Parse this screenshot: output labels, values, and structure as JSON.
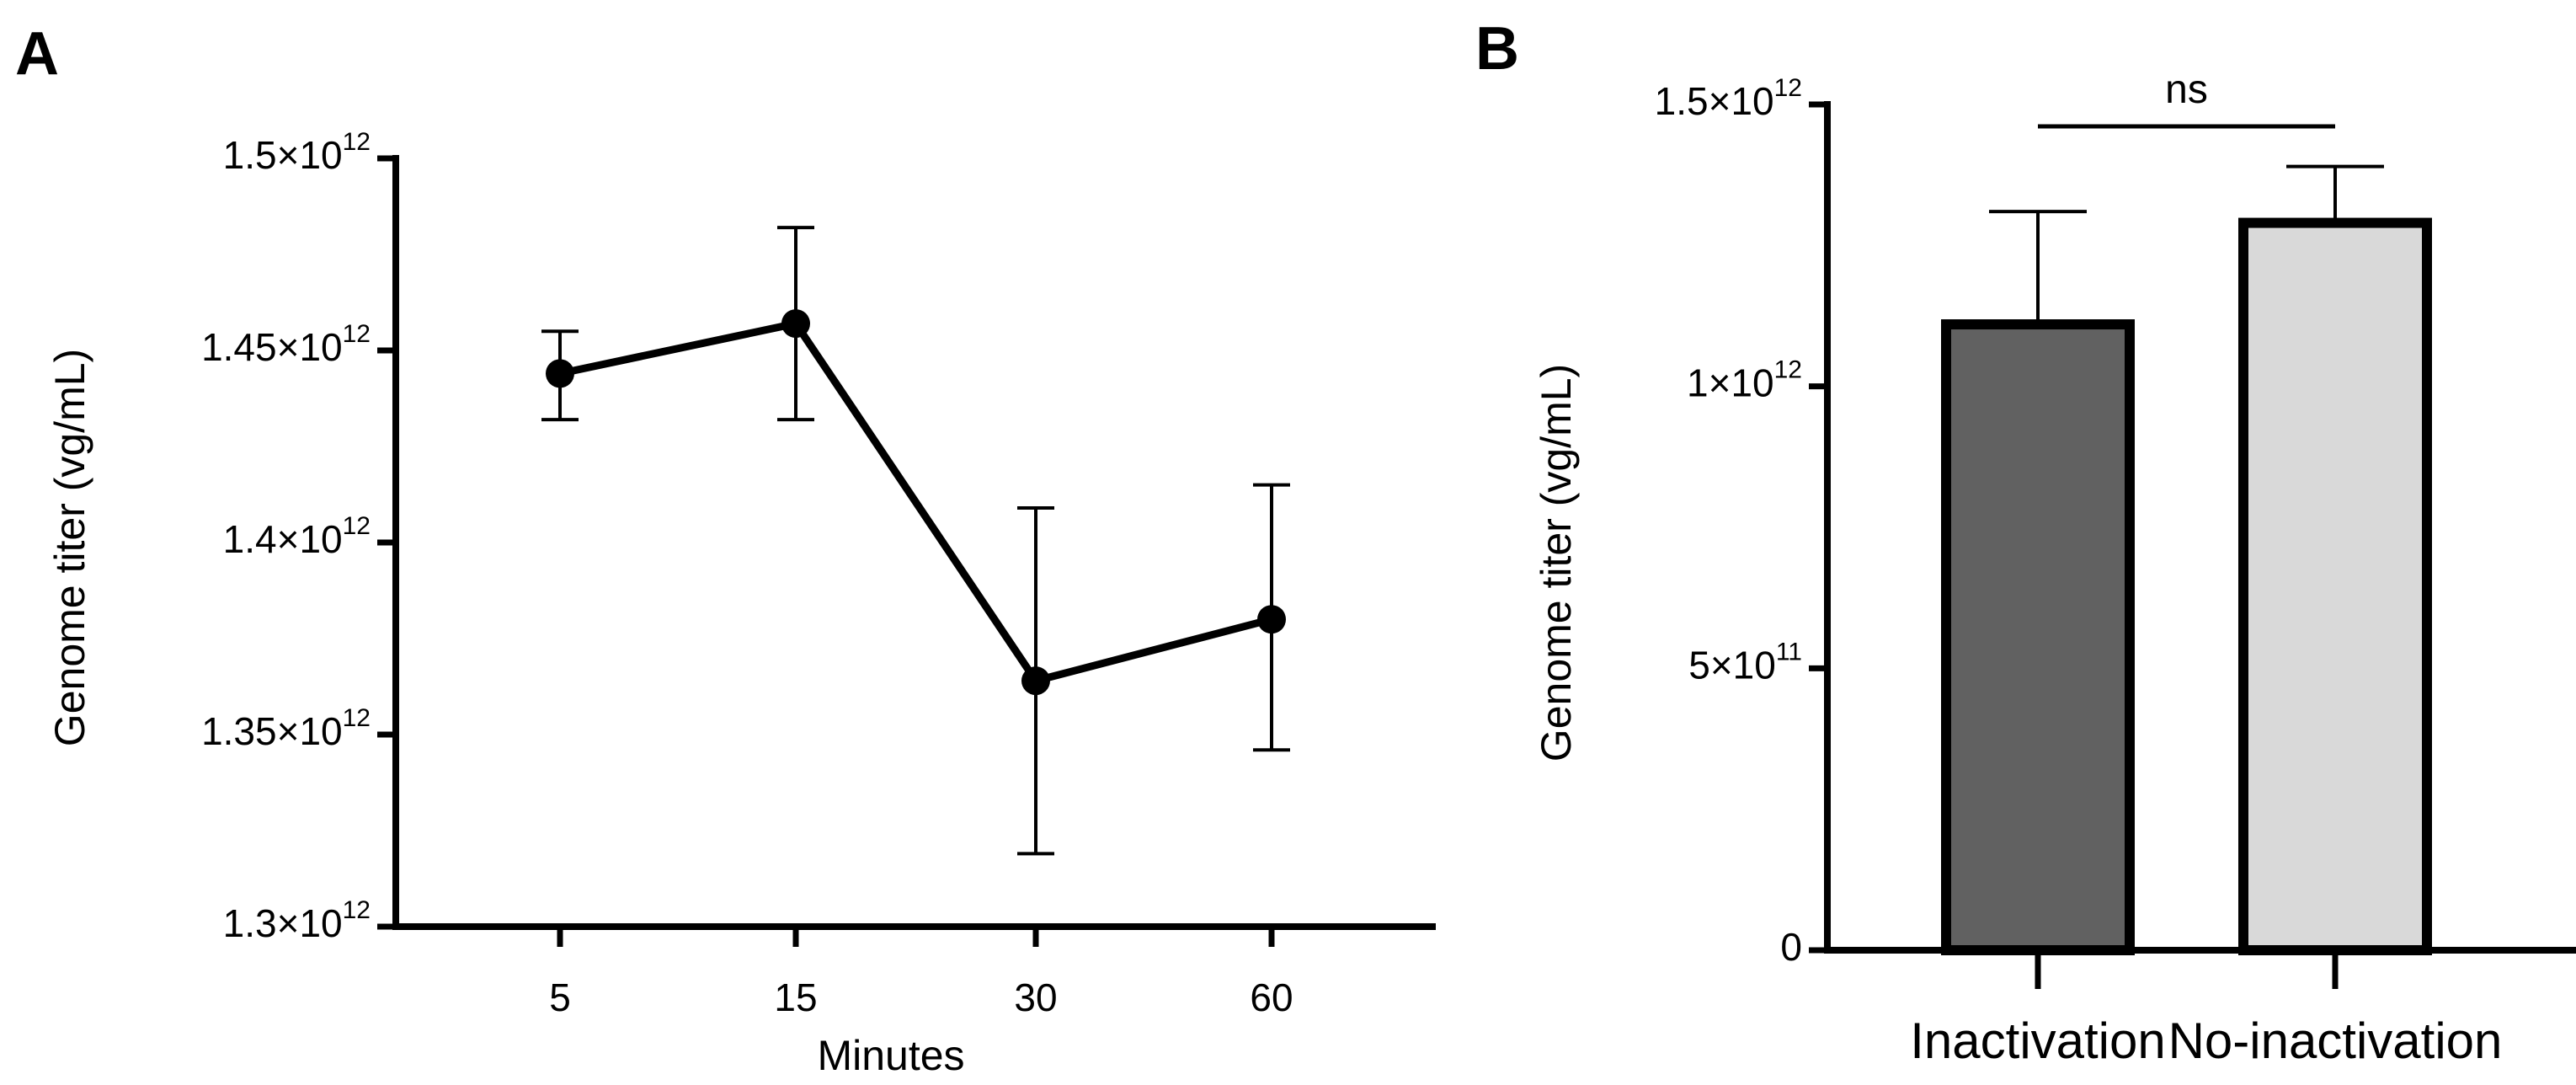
{
  "chart_data": [
    {
      "panel": "A",
      "type": "line",
      "xlabel": "Minutes",
      "ylabel": "Genome titer (vg/mL)",
      "categories": [
        "5",
        "15",
        "30",
        "60"
      ],
      "series": [
        {
          "name": "Genome titer",
          "values": [
            1444000000000.0,
            1457000000000.0,
            1364000000000.0,
            1380000000000.0
          ],
          "error_upper": [
            1455000000000.0,
            1482000000000.0,
            1409000000000.0,
            1415000000000.0
          ],
          "error_lower": [
            1432000000000.0,
            1432000000000.0,
            1319000000000.0,
            1346000000000.0
          ]
        }
      ],
      "ylim": [
        1300000000000.0,
        1500000000000.0
      ],
      "yticks": [
        {
          "value": 1300000000000.0,
          "mantissa": "1.3",
          "exponent": "12"
        },
        {
          "value": 1350000000000.0,
          "mantissa": "1.35",
          "exponent": "12"
        },
        {
          "value": 1400000000000.0,
          "mantissa": "1.4",
          "exponent": "12"
        },
        {
          "value": 1450000000000.0,
          "mantissa": "1.45",
          "exponent": "12"
        },
        {
          "value": 1500000000000.0,
          "mantissa": "1.5",
          "exponent": "12"
        }
      ],
      "grid": false
    },
    {
      "panel": "B",
      "type": "bar",
      "xlabel": "",
      "ylabel": "Genome titer (vg/mL)",
      "categories": [
        "Inactivation",
        "No-inactivation"
      ],
      "series": [
        {
          "name": "Genome titer",
          "values": [
            1110000000000.0,
            1290000000000.0
          ],
          "error_upper": [
            1310000000000.0,
            1390000000000.0
          ],
          "colors": [
            "#616161",
            "#d9d9d9"
          ]
        }
      ],
      "ylim": [
        0,
        1500000000000.0
      ],
      "yticks": [
        {
          "value": 0,
          "mantissa": "0",
          "exponent": ""
        },
        {
          "value": 500000000000.0,
          "mantissa": "5",
          "exponent": "11"
        },
        {
          "value": 1000000000000.0,
          "mantissa": "1",
          "exponent": "12"
        },
        {
          "value": 1500000000000.0,
          "mantissa": "1.5",
          "exponent": "12"
        }
      ],
      "significance": {
        "label": "ns",
        "between": [
          "Inactivation",
          "No-inactivation"
        ]
      },
      "grid": false
    }
  ]
}
